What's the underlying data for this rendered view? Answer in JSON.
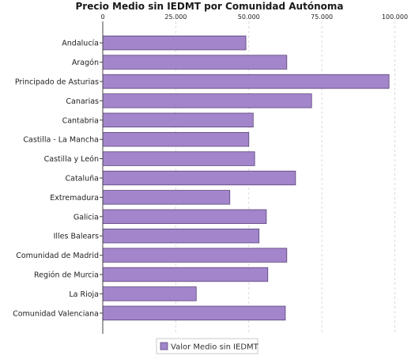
{
  "chart_data": {
    "type": "bar",
    "orientation": "horizontal",
    "title": "Precio Medio sin IEDMT por Comunidad Autónoma",
    "xlabel": "",
    "ylabel": "",
    "xlim": [
      0,
      105000
    ],
    "x_ticks": [
      0,
      25000,
      50000,
      75000,
      100000
    ],
    "x_tick_labels": [
      "0",
      "25.000",
      "50.000",
      "75.000",
      "100.000"
    ],
    "x_axis_position": "top",
    "grid": true,
    "legend_position": "bottom",
    "categories": [
      "Andalucía",
      "Aragón",
      "Principado de Asturias",
      "Canarias",
      "Cantabria",
      "Castilla - La Mancha",
      "Castilla y León",
      "Cataluña",
      "Extremadura",
      "Galicia",
      "Illes Balears",
      "Comunidad de Madrid",
      "Región de Murcia",
      "La Rioja",
      "Comunidad Valenciana"
    ],
    "series": [
      {
        "name": "Valor Medio sin IEDMT",
        "color": "#a385cc",
        "values": [
          49000,
          63000,
          98000,
          71500,
          51500,
          50000,
          52000,
          66000,
          43500,
          56000,
          53500,
          63000,
          56500,
          32000,
          62500
        ]
      }
    ]
  },
  "colors": {
    "bar": "#a385cc",
    "bar_border": "#5a4478",
    "grid": "#d9d9d9",
    "axis": "#444444"
  }
}
